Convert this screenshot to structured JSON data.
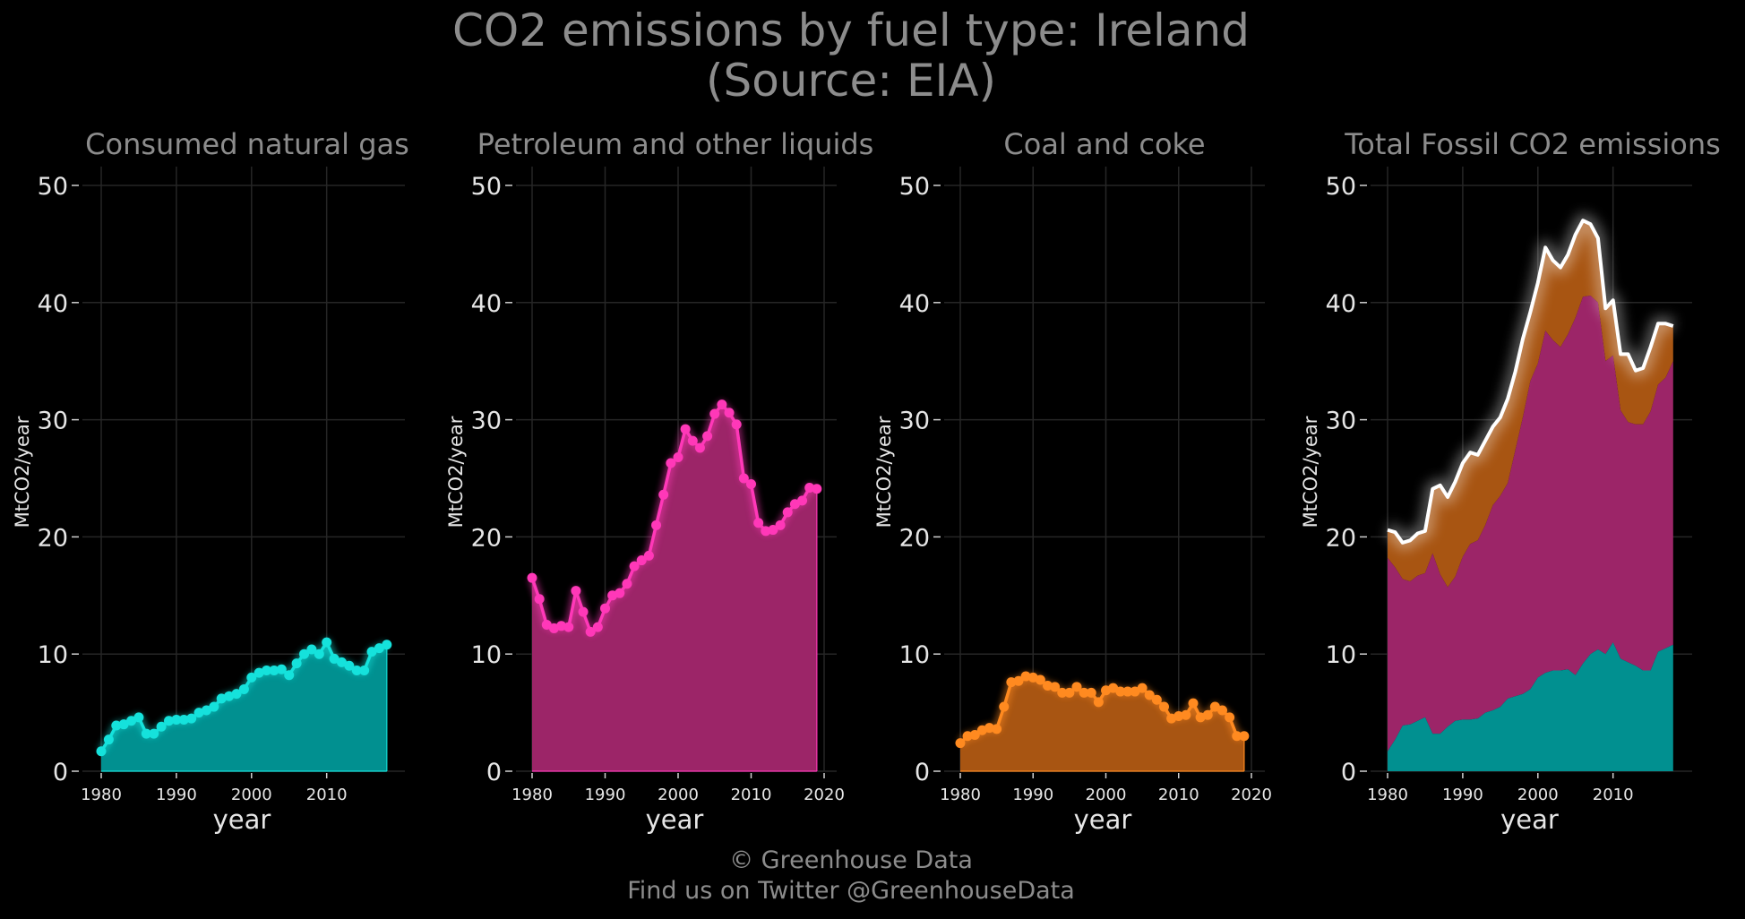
{
  "title": [
    "CO2 emissions by fuel type: Ireland",
    "(Source: EIA)"
  ],
  "credit": [
    "© Greenhouse Data",
    "Find us on Twitter @GreenhouseData"
  ],
  "colors": {
    "background": "#000000",
    "gas": "#15e2dc",
    "gas_fill": "#019090",
    "petroleum": "#ff38b8",
    "petroleum_fill": "#9c2568",
    "coal": "#ff8a20",
    "coal_fill": "#a85512",
    "total": "#ffffff",
    "text": "#8c8c8c",
    "grid": "#262626"
  },
  "chart_data": [
    {
      "type": "area",
      "title": "Consumed natural gas",
      "xlabel": "year",
      "ylabel": "MtCO2/year",
      "ylim": [
        0,
        52
      ],
      "xlim": [
        1978,
        2020
      ],
      "xticks": [
        1980,
        1990,
        2000,
        2010
      ],
      "yticks": [
        0,
        10,
        20,
        30,
        40,
        50
      ],
      "grid": true,
      "series": [
        {
          "x": [
            1980,
            1981,
            1982,
            1983,
            1984,
            1985,
            1986,
            1987,
            1988,
            1989,
            1990,
            1991,
            1992,
            1993,
            1994,
            1995,
            1996,
            1997,
            1998,
            1999,
            2000,
            2001,
            2002,
            2003,
            2004,
            2005,
            2006,
            2007,
            2008,
            2009,
            2010,
            2011,
            2012,
            2013,
            2014,
            2015,
            2016,
            2017,
            2018
          ],
          "values": [
            1.7,
            2.7,
            3.9,
            4.0,
            4.3,
            4.6,
            3.2,
            3.2,
            3.8,
            4.3,
            4.4,
            4.4,
            4.5,
            5.0,
            5.2,
            5.5,
            6.2,
            6.4,
            6.6,
            7.0,
            8.0,
            8.4,
            8.6,
            8.6,
            8.7,
            8.2,
            9.2,
            10.0,
            10.4,
            10.0,
            11.0,
            9.6,
            9.3,
            9.0,
            8.6,
            8.6,
            10.2,
            10.5,
            10.8
          ]
        }
      ]
    },
    {
      "type": "area",
      "title": "Petroleum and other liquids",
      "xlabel": "year",
      "ylabel": "MtCO2/year",
      "ylim": [
        0,
        52
      ],
      "xlim": [
        1978,
        2021
      ],
      "xticks": [
        1980,
        1990,
        2000,
        2010,
        2020
      ],
      "yticks": [
        0,
        10,
        20,
        30,
        40,
        50
      ],
      "grid": true,
      "series": [
        {
          "x": [
            1980,
            1981,
            1982,
            1983,
            1984,
            1985,
            1986,
            1987,
            1988,
            1989,
            1990,
            1991,
            1992,
            1993,
            1994,
            1995,
            1996,
            1997,
            1998,
            1999,
            2000,
            2001,
            2002,
            2003,
            2004,
            2005,
            2006,
            2007,
            2008,
            2009,
            2010,
            2011,
            2012,
            2013,
            2014,
            2015,
            2016,
            2017,
            2018,
            2019
          ],
          "values": [
            16.5,
            14.7,
            12.5,
            12.2,
            12.4,
            12.3,
            15.4,
            13.6,
            11.9,
            12.3,
            13.9,
            15.0,
            15.2,
            16.0,
            17.5,
            18.0,
            18.4,
            21.0,
            23.6,
            26.3,
            26.8,
            29.2,
            28.2,
            27.6,
            28.6,
            30.5,
            31.3,
            30.6,
            29.6,
            25.0,
            24.5,
            21.2,
            20.5,
            20.6,
            21.0,
            22.1,
            22.8,
            23.1,
            24.2,
            24.1
          ]
        }
      ]
    },
    {
      "type": "area",
      "title": "Coal and coke",
      "xlabel": "year",
      "ylabel": "MtCO2/year",
      "ylim": [
        0,
        52
      ],
      "xlim": [
        1978,
        2021
      ],
      "xticks": [
        1980,
        1990,
        2000,
        2010,
        2020
      ],
      "yticks": [
        0,
        10,
        20,
        30,
        40,
        50
      ],
      "grid": true,
      "series": [
        {
          "x": [
            1980,
            1981,
            1982,
            1983,
            1984,
            1985,
            1986,
            1987,
            1988,
            1989,
            1990,
            1991,
            1992,
            1993,
            1994,
            1995,
            1996,
            1997,
            1998,
            1999,
            2000,
            2001,
            2002,
            2003,
            2004,
            2005,
            2006,
            2007,
            2008,
            2009,
            2010,
            2011,
            2012,
            2013,
            2014,
            2015,
            2016,
            2017,
            2018,
            2019
          ],
          "values": [
            2.4,
            3.0,
            3.1,
            3.5,
            3.7,
            3.6,
            5.5,
            7.6,
            7.7,
            8.1,
            8.0,
            7.8,
            7.3,
            7.2,
            6.7,
            6.7,
            7.2,
            6.7,
            6.7,
            5.9,
            6.9,
            7.1,
            6.8,
            6.8,
            6.8,
            7.1,
            6.5,
            6.1,
            5.5,
            4.5,
            4.7,
            4.8,
            5.8,
            4.6,
            4.8,
            5.5,
            5.2,
            4.6,
            3.0,
            3.0
          ]
        }
      ]
    },
    {
      "type": "area",
      "title": "Total Fossil CO2 emissions",
      "xlabel": "year",
      "ylabel": "MtCO2/year",
      "ylim": [
        0,
        52
      ],
      "xlim": [
        1978,
        2020
      ],
      "xticks": [
        1980,
        1990,
        2000,
        2010
      ],
      "yticks": [
        0,
        10,
        20,
        30,
        40,
        50
      ],
      "grid": true,
      "stacked": true,
      "series": [
        {
          "x": [
            1980,
            1981,
            1982,
            1983,
            1984,
            1985,
            1986,
            1987,
            1988,
            1989,
            1990,
            1991,
            1992,
            1993,
            1994,
            1995,
            1996,
            1997,
            1998,
            1999,
            2000,
            2001,
            2002,
            2003,
            2004,
            2005,
            2006,
            2007,
            2008,
            2009,
            2010,
            2011,
            2012,
            2013,
            2014,
            2015,
            2016,
            2017,
            2018
          ],
          "values": [
            20.6,
            20.4,
            19.5,
            19.7,
            20.3,
            20.5,
            24.1,
            24.4,
            23.4,
            24.7,
            26.3,
            27.2,
            27.0,
            28.2,
            29.4,
            30.2,
            31.8,
            34.1,
            36.9,
            39.2,
            41.7,
            44.7,
            43.6,
            43.0,
            44.1,
            45.8,
            47.0,
            46.7,
            45.5,
            39.5,
            40.2,
            35.6,
            35.6,
            34.2,
            34.4,
            36.2,
            38.2,
            38.2,
            38.0
          ]
        }
      ]
    }
  ]
}
